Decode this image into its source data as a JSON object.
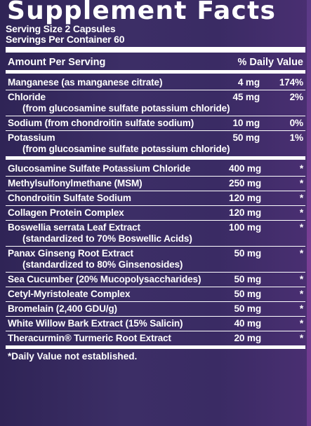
{
  "title": "Supplement Facts",
  "serving_size": "Serving Size 2 Capsules",
  "servings_per_container": "Servings Per Container 60",
  "header": {
    "amount": "Amount Per Serving",
    "dv": "% Daily Value"
  },
  "section_a": [
    {
      "name": "Manganese (as manganese citrate)",
      "sub": "",
      "amount": "4 mg",
      "dv": "174%"
    },
    {
      "name": "Chloride",
      "sub": "(from glucosamine sulfate potassium chloride)",
      "amount": "45 mg",
      "dv": "2%"
    },
    {
      "name": "Sodium (from chondroitin sulfate sodium)",
      "sub": "",
      "amount": "10 mg",
      "dv": "0%"
    },
    {
      "name": "Potassium",
      "sub": "(from glucosamine sulfate potassium chloride)",
      "amount": "50 mg",
      "dv": "1%"
    }
  ],
  "section_b": [
    {
      "name": "Glucosamine Sulfate Potassium Chloride",
      "sub": "",
      "amount": "400 mg",
      "dv": "*"
    },
    {
      "name": "Methylsulfonylmethane (MSM)",
      "sub": "",
      "amount": "250 mg",
      "dv": "*"
    },
    {
      "name": "Chondroitin Sulfate Sodium",
      "sub": "",
      "amount": "120 mg",
      "dv": "*"
    },
    {
      "name": "Collagen Protein Complex",
      "sub": "",
      "amount": "120 mg",
      "dv": "*"
    },
    {
      "name": "Boswellia serrata Leaf Extract",
      "sub": "(standardized to 70% Boswellic Acids)",
      "amount": "100 mg",
      "dv": "*"
    },
    {
      "name": "Panax Ginseng Root Extract",
      "sub": "(standardized to 80% Ginsenosides)",
      "amount": "50 mg",
      "dv": "*"
    },
    {
      "name": "Sea Cucumber (20% Mucopolysaccharides)",
      "sub": "",
      "amount": "50 mg",
      "dv": "*"
    },
    {
      "name": "Cetyl-Myristoleate Complex",
      "sub": "",
      "amount": "50 mg",
      "dv": "*"
    },
    {
      "name": "Bromelain (2,400 GDU/g)",
      "sub": "",
      "amount": "50 mg",
      "dv": "*"
    },
    {
      "name": "White Willow Bark Extract (15% Salicin)",
      "sub": "",
      "amount": "40 mg",
      "dv": "*"
    },
    {
      "name": "Theracurmin® Turmeric Root Extract",
      "sub": "",
      "amount": "20 mg",
      "dv": "*"
    }
  ],
  "footnote": "*Daily Value not established."
}
